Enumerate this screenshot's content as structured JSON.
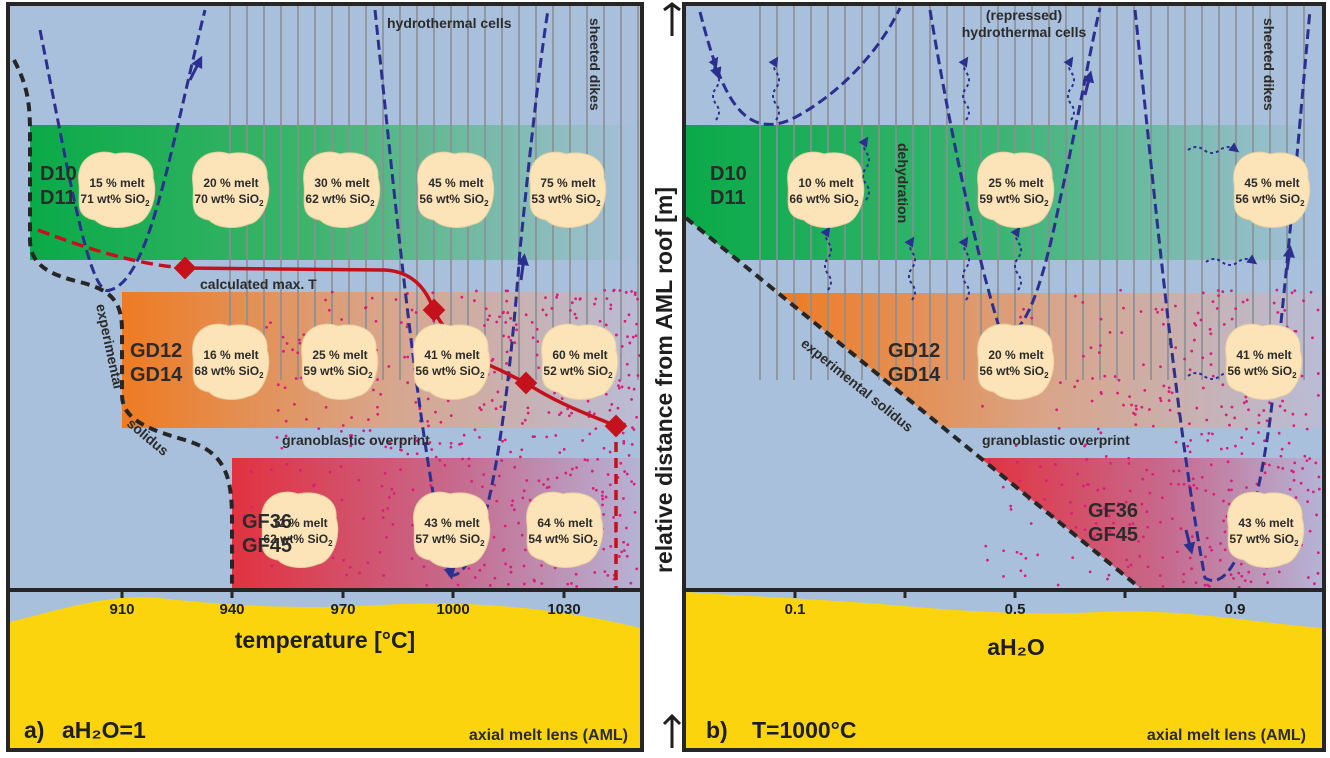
{
  "panel_a": {
    "panel_label": "a)",
    "panel_condition": "aH₂O=1",
    "axis_label": "temperature [°C]",
    "ticks": [
      "910",
      "940",
      "970",
      "1000",
      "1030"
    ],
    "aml_label": "axial melt lens (AML)",
    "hydrothermal_label": "hydrothermal cells",
    "sheeted_dikes_label": "sheeted dikes",
    "calc_max_label": "calculated max. T",
    "granoblastic_label": "granoblastic overprint",
    "experimental_label": "experimental",
    "solidus_label": "solidus",
    "units": {
      "dike": [
        "D10",
        "D11"
      ],
      "gabbro_dike": [
        "GD12",
        "GD14"
      ],
      "foliated_gabbro": [
        "GF36",
        "GF45"
      ]
    },
    "melts": [
      {
        "melt": "15 % melt",
        "sio2": "71 wt% SiO",
        "sub": "2"
      },
      {
        "melt": "20 % melt",
        "sio2": "70 wt% SiO",
        "sub": "2"
      },
      {
        "melt": "30 % melt",
        "sio2": "62 wt% SiO",
        "sub": "2"
      },
      {
        "melt": "45 % melt",
        "sio2": "56 wt% SiO",
        "sub": "2"
      },
      {
        "melt": "75 % melt",
        "sio2": "53 wt% SiO",
        "sub": "2"
      },
      {
        "melt": "16 % melt",
        "sio2": "68 wt% SiO",
        "sub": "2"
      },
      {
        "melt": "25 % melt",
        "sio2": "59 wt% SiO",
        "sub": "2"
      },
      {
        "melt": "41 % melt",
        "sio2": "56 wt% SiO",
        "sub": "2"
      },
      {
        "melt": "60 % melt",
        "sio2": "52 wt% SiO",
        "sub": "2"
      },
      {
        "melt": "12 % melt",
        "sio2": "62 wt% SiO",
        "sub": "2"
      },
      {
        "melt": "43 % melt",
        "sio2": "57 wt% SiO",
        "sub": "2"
      },
      {
        "melt": "64 % melt",
        "sio2": "54 wt% SiO",
        "sub": "2"
      }
    ]
  },
  "panel_b": {
    "panel_label": "b)",
    "panel_condition": "T=1000°C",
    "axis_label": "aH₂O",
    "ticks": [
      "0.1",
      "0.5",
      "0.9"
    ],
    "aml_label": "axial melt lens (AML)",
    "hydrothermal_label_1": "(repressed)",
    "hydrothermal_label_2": "hydrothermal cells",
    "sheeted_dikes_label": "sheeted dikes",
    "dehydration_label": "dehydration",
    "granoblastic_label": "granoblastic overprint",
    "experimental_solidus_label": "experimental solidus",
    "units": {
      "dike": [
        "D10",
        "D11"
      ],
      "gabbro_dike": [
        "GD12",
        "GD14"
      ],
      "foliated_gabbro": [
        "GF36",
        "GF45"
      ]
    },
    "melts": [
      {
        "melt": "10 % melt",
        "sio2": "66 wt% SiO",
        "sub": "2"
      },
      {
        "melt": "25 % melt",
        "sio2": "59 wt% SiO",
        "sub": "2"
      },
      {
        "melt": "45 % melt",
        "sio2": "56 wt% SiO",
        "sub": "2"
      },
      {
        "melt": "20 % melt",
        "sio2": "56 wt% SiO",
        "sub": "2"
      },
      {
        "melt": "41 % melt",
        "sio2": "56 wt% SiO",
        "sub": "2"
      },
      {
        "melt": "43 % melt",
        "sio2": "57 wt% SiO",
        "sub": "2"
      }
    ]
  },
  "center_axis_label": "relative distance from AML roof [m]",
  "colors": {
    "background_blue": "#a9c0dc",
    "green": "#0aaa48",
    "orange": "#ee7b22",
    "red": "#e2323f",
    "aml_yellow": "#fbd40e",
    "blob": "#fde4b8",
    "melt_curve": "#c4111b",
    "cell_arrow": "#2b2f8f",
    "dots": "#d8207a"
  }
}
